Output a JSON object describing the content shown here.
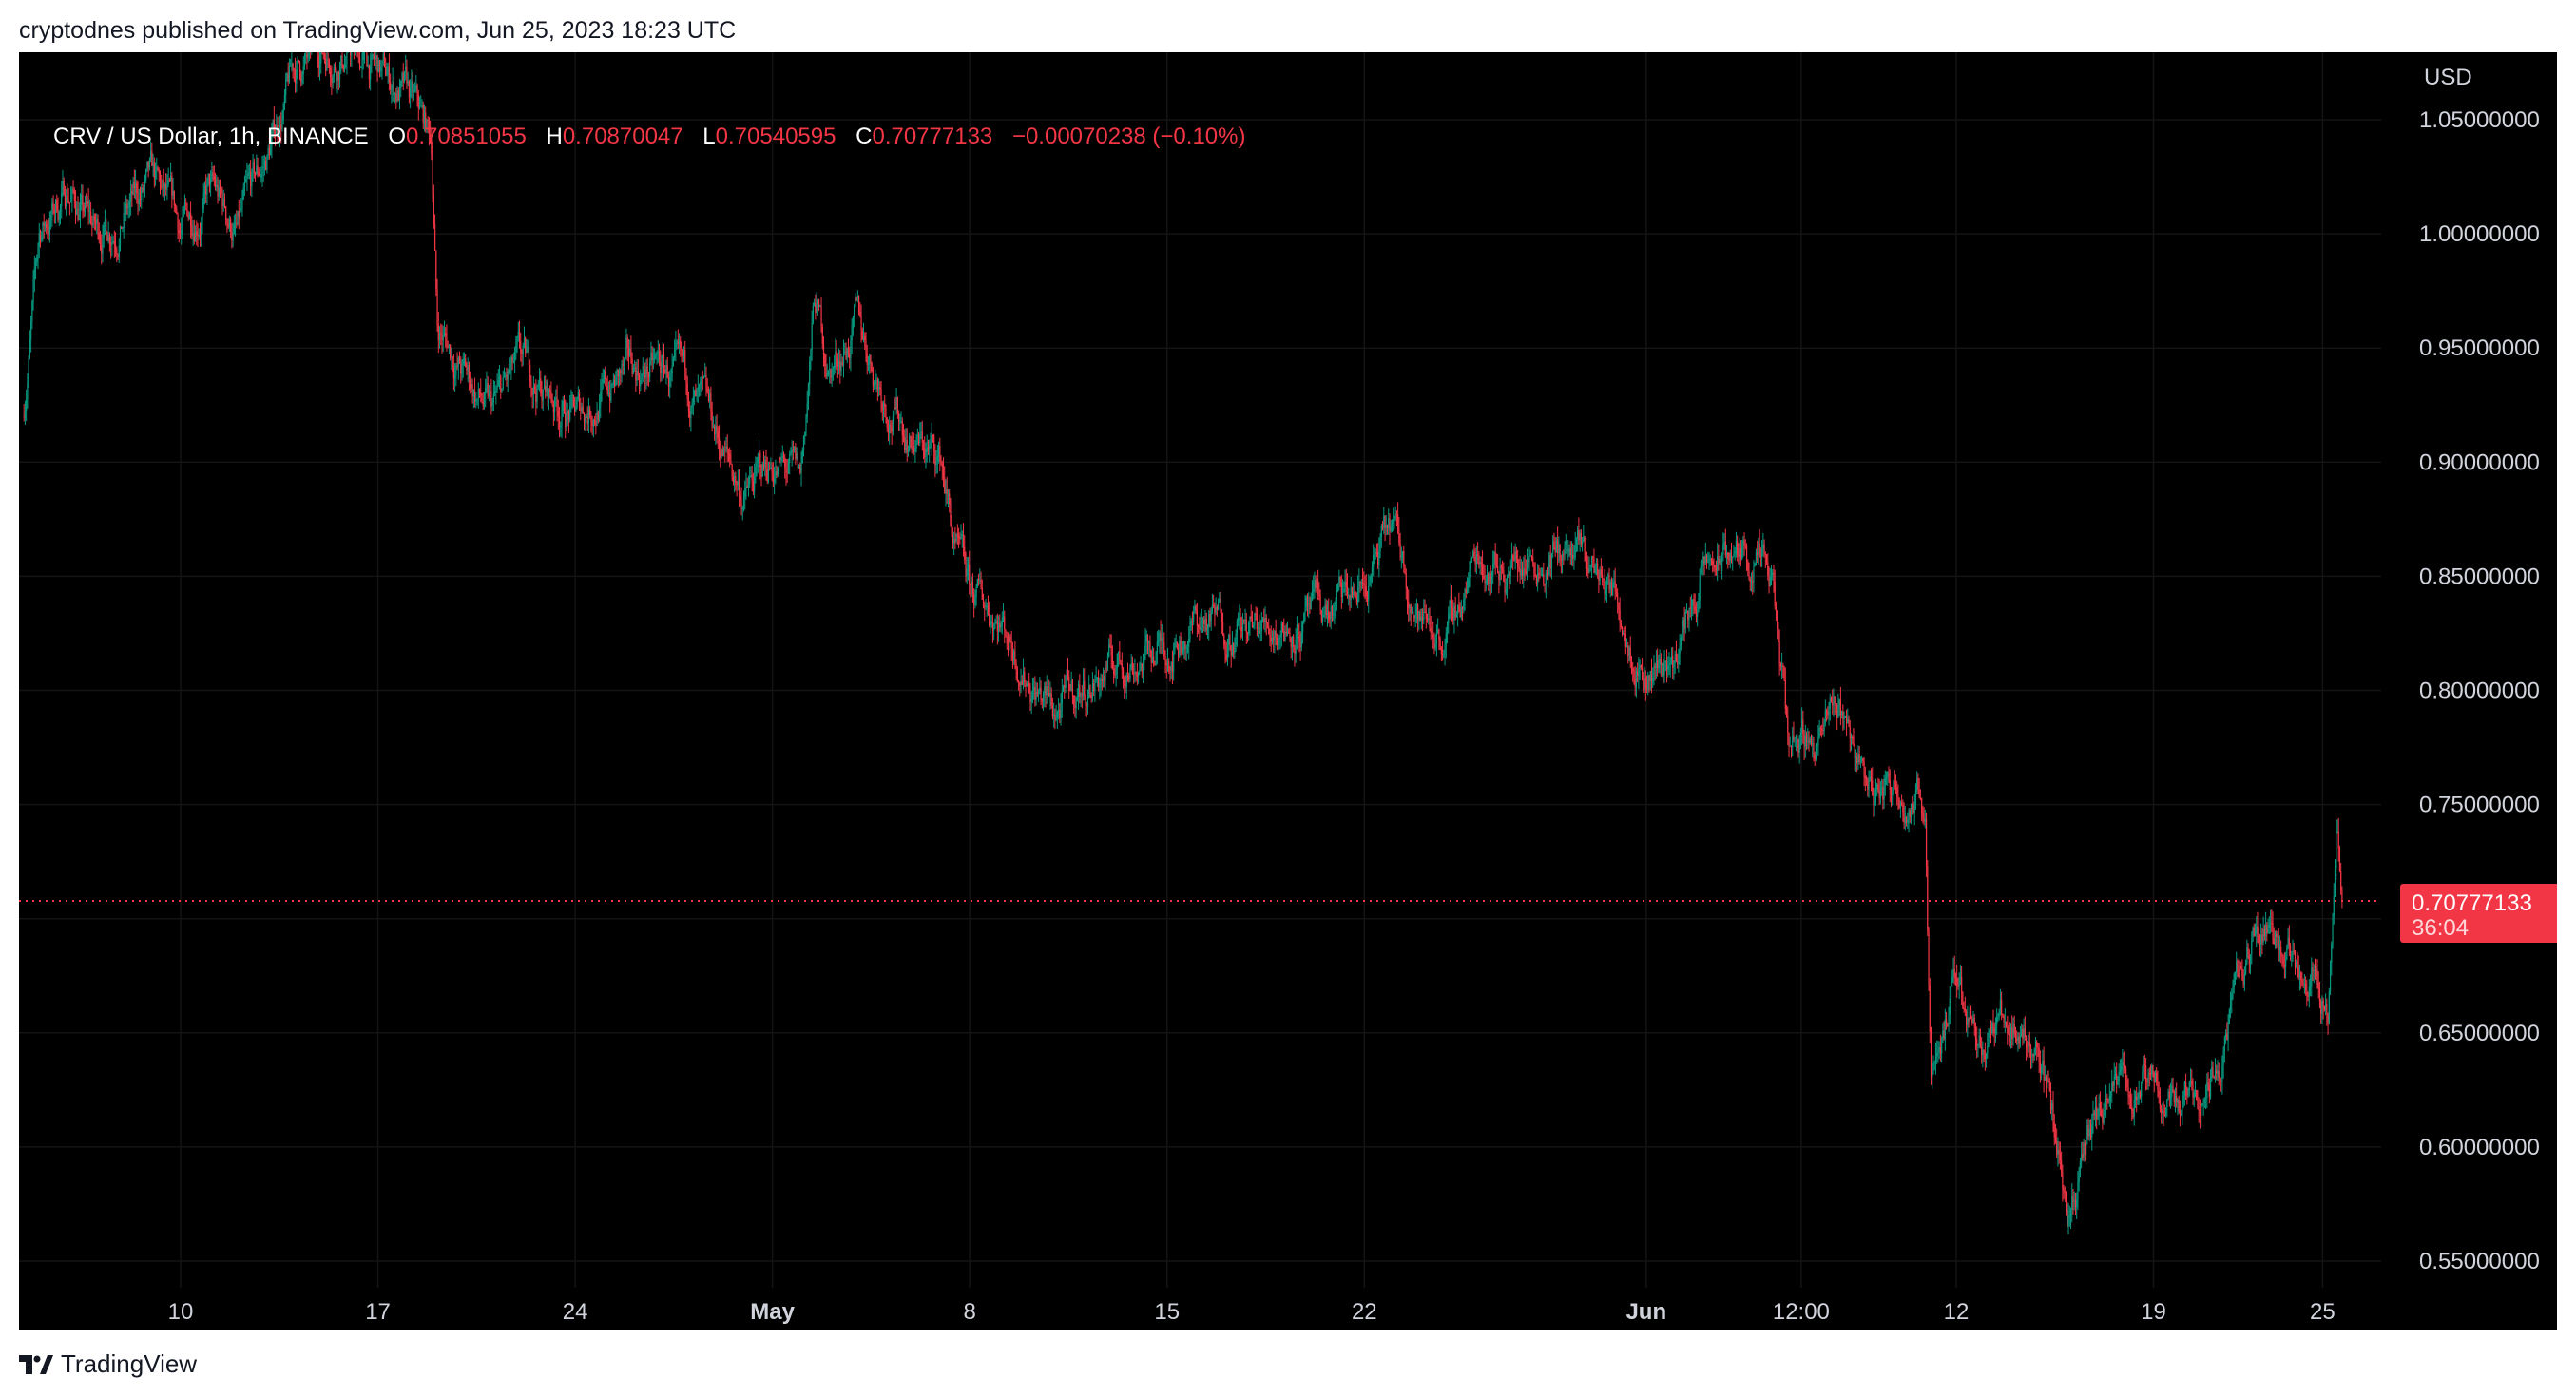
{
  "caption": "cryptodnes published on TradingView.com, Jun 25, 2023 18:23 UTC",
  "legend": {
    "symbol": "CRV / US Dollar, 1h, BINANCE",
    "o_label": "O",
    "o": "0.70851055",
    "h_label": "H",
    "h": "0.70870047",
    "l_label": "L",
    "l": "0.70540595",
    "c_label": "C",
    "c": "0.70777133",
    "change": "−0.00070238 (−0.10%)"
  },
  "price_label": {
    "value": "0.70777133",
    "countdown": "36:04"
  },
  "logo": "TradingView",
  "colors": {
    "up": "#089981",
    "down": "#f23645",
    "background": "#000000"
  },
  "chart_data": {
    "type": "candlestick",
    "title": "CRV / US Dollar, 1h, BINANCE",
    "currency": "USD",
    "ylim": [
      0.53,
      1.075
    ],
    "y_ticks": [
      "1.05000000",
      "1.00000000",
      "0.95000000",
      "0.90000000",
      "0.85000000",
      "0.80000000",
      "0.75000000",
      "0.70000000",
      "0.65000000",
      "0.60000000",
      "0.55000000"
    ],
    "y_tick_values": [
      1.05,
      1.0,
      0.95,
      0.9,
      0.85,
      0.8,
      0.75,
      0.7,
      0.65,
      0.6,
      0.55
    ],
    "x_ticks": [
      {
        "label": "10",
        "day": 10
      },
      {
        "label": "17",
        "day": 17
      },
      {
        "label": "24",
        "day": 24
      },
      {
        "label": "May",
        "day": 31
      },
      {
        "label": "8",
        "day": 38
      },
      {
        "label": "15",
        "day": 45
      },
      {
        "label": "22",
        "day": 52
      },
      {
        "label": "Jun",
        "day": 62
      },
      {
        "label": "12:00",
        "day": 67.5
      },
      {
        "label": "12",
        "day": 73
      },
      {
        "label": "19",
        "day": 80
      },
      {
        "label": "25",
        "day": 86
      }
    ],
    "x_unit": "days since Mar 31 2023",
    "start_day": 4.4,
    "end_day": 86.7,
    "approx_daily_path": [
      [
        4.4,
        0.92
      ],
      [
        5,
        1.0
      ],
      [
        6,
        1.02
      ],
      [
        7,
        1.0
      ],
      [
        8,
        1.01
      ],
      [
        9,
        1.02
      ],
      [
        10,
        1.0
      ],
      [
        11,
        1.02
      ],
      [
        12,
        1.0
      ],
      [
        13,
        1.03
      ],
      [
        14,
        1.07
      ],
      [
        15,
        1.08
      ],
      [
        16,
        1.08
      ],
      [
        17,
        1.07
      ],
      [
        18,
        1.06
      ],
      [
        18.9,
        1.04
      ],
      [
        19.1,
        0.96
      ],
      [
        20,
        0.94
      ],
      [
        21,
        0.92
      ],
      [
        22,
        0.94
      ],
      [
        23,
        0.93
      ],
      [
        24,
        0.92
      ],
      [
        25,
        0.93
      ],
      [
        26,
        0.94
      ],
      [
        27,
        0.94
      ],
      [
        28,
        0.93
      ],
      [
        29,
        0.91
      ],
      [
        30,
        0.885
      ],
      [
        31,
        0.9
      ],
      [
        32,
        0.89
      ],
      [
        32.5,
        0.97
      ],
      [
        33,
        0.94
      ],
      [
        34,
        0.96
      ],
      [
        35,
        0.93
      ],
      [
        36,
        0.91
      ],
      [
        37,
        0.9
      ],
      [
        37.5,
        0.86
      ],
      [
        38,
        0.84
      ],
      [
        39,
        0.835
      ],
      [
        40,
        0.81
      ],
      [
        41,
        0.79
      ],
      [
        42,
        0.8
      ],
      [
        43,
        0.81
      ],
      [
        44,
        0.815
      ],
      [
        45,
        0.82
      ],
      [
        46,
        0.83
      ],
      [
        47,
        0.83
      ],
      [
        48,
        0.825
      ],
      [
        49,
        0.83
      ],
      [
        50,
        0.83
      ],
      [
        51,
        0.835
      ],
      [
        52,
        0.845
      ],
      [
        53,
        0.87
      ],
      [
        54,
        0.83
      ],
      [
        55,
        0.825
      ],
      [
        56,
        0.86
      ],
      [
        57,
        0.855
      ],
      [
        58,
        0.86
      ],
      [
        59,
        0.86
      ],
      [
        60,
        0.855
      ],
      [
        61,
        0.84
      ],
      [
        62,
        0.81
      ],
      [
        63,
        0.815
      ],
      [
        64,
        0.85
      ],
      [
        65,
        0.86
      ],
      [
        66,
        0.855
      ],
      [
        66.5,
        0.84
      ],
      [
        67,
        0.78
      ],
      [
        68,
        0.78
      ],
      [
        69,
        0.79
      ],
      [
        70,
        0.755
      ],
      [
        71,
        0.76
      ],
      [
        71.9,
        0.75
      ],
      [
        72.1,
        0.64
      ],
      [
        73,
        0.67
      ],
      [
        74,
        0.65
      ],
      [
        75,
        0.655
      ],
      [
        76,
        0.64
      ],
      [
        77,
        0.575
      ],
      [
        78,
        0.61
      ],
      [
        79,
        0.63
      ],
      [
        80,
        0.62
      ],
      [
        81,
        0.625
      ],
      [
        82,
        0.63
      ],
      [
        83,
        0.67
      ],
      [
        84,
        0.7
      ],
      [
        85,
        0.68
      ],
      [
        85.8,
        0.685
      ],
      [
        86.2,
        0.665
      ],
      [
        86.5,
        0.74
      ],
      [
        86.7,
        0.7078
      ]
    ]
  }
}
